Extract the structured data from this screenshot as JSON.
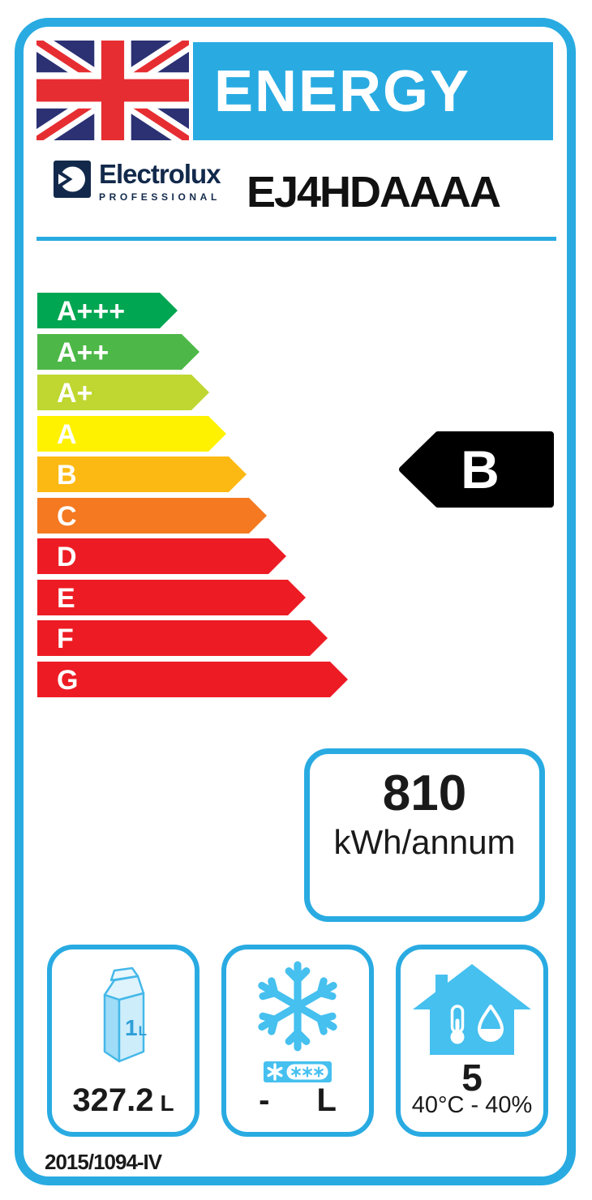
{
  "header": {
    "title": "ENERGY"
  },
  "brand": {
    "name": "Electrolux",
    "subtitle": "PROFESSIONAL",
    "model": "EJ4HDAAAA"
  },
  "rating_scale": [
    {
      "label": "A+++",
      "color": "#00A651",
      "total_width": 173
    },
    {
      "label": "A++",
      "color": "#4DB848",
      "total_width": 200
    },
    {
      "label": "A+",
      "color": "#BFD730",
      "total_width": 212
    },
    {
      "label": "A",
      "color": "#FFF200",
      "total_width": 233
    },
    {
      "label": "B",
      "color": "#FDB913",
      "total_width": 258
    },
    {
      "label": "C",
      "color": "#F47920",
      "total_width": 283
    },
    {
      "label": "D",
      "color": "#ED1C24",
      "total_width": 307
    },
    {
      "label": "E",
      "color": "#ED1C24",
      "total_width": 331
    },
    {
      "label": "F",
      "color": "#ED1C24",
      "total_width": 358
    },
    {
      "label": "G",
      "color": "#ED1C24",
      "total_width": 383
    }
  ],
  "rating": {
    "grade": "B"
  },
  "energy_consumption": {
    "value": "810",
    "unit": "kWh/annum"
  },
  "features": {
    "fridge_volume": {
      "value": "327.2",
      "unit": "L",
      "icon": "milk-carton-icon",
      "carton_value": "1",
      "carton_unit": "L"
    },
    "freezer_volume": {
      "value": "-",
      "unit": "L",
      "icon": "snowflake-icon",
      "star_rating_icon": "freezer-four-star-icon"
    },
    "climate_class": {
      "value": "5",
      "condition": "40°C - 40%",
      "icon": "house-icon"
    }
  },
  "regulation": "2015/1094-IV",
  "colors": {
    "accent": "#29ABE2",
    "icon_blue": "#45C0EF",
    "flag_blue": "#2B3173",
    "flag_red": "#E62E32",
    "brand_navy": "#12294B",
    "rating_pointer": "#000000"
  }
}
